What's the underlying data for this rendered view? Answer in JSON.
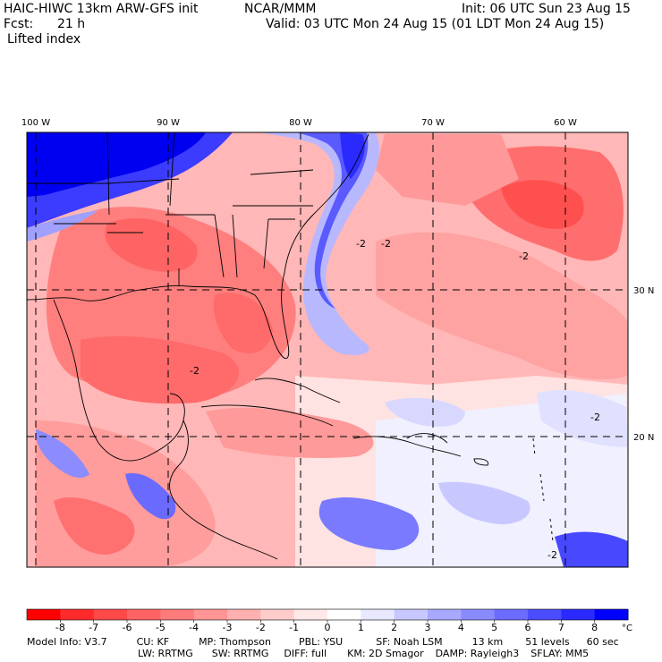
{
  "header": {
    "model_title": "HAIC-HIWC 13km ARW-GFS init",
    "org": "NCAR/MMM",
    "init": "Init: 06 UTC Sun 23 Aug 15",
    "fcst_label": "Fcst:",
    "fcst_value": "21 h",
    "valid": "Valid: 03 UTC Mon 24 Aug 15 (01 LDT Mon 24 Aug 15)",
    "field": "Lifted index"
  },
  "map": {
    "lon_labels": [
      "100 W",
      "90 W",
      "80 W",
      "70 W",
      "60 W"
    ],
    "lat_labels": [
      "30 N",
      "20 N"
    ],
    "contour_labels": [
      "-2",
      "-2",
      "-2",
      "-2",
      "-2",
      "-2"
    ]
  },
  "colorbar": {
    "ticks": [
      "-8",
      "-7",
      "-6",
      "-5",
      "-4",
      "-3",
      "-2",
      "-1",
      "0",
      "1",
      "2",
      "3",
      "4",
      "5",
      "6",
      "7",
      "8"
    ],
    "unit": "°C",
    "colors": [
      "#ff0000",
      "#ff2b2b",
      "#ff4848",
      "#ff6262",
      "#ff7a7a",
      "#ff9595",
      "#ffb0b0",
      "#ffcccc",
      "#ffe8e8",
      "#ffffff",
      "#e8e8ff",
      "#c8c8ff",
      "#a8a8ff",
      "#8a8aff",
      "#6b6bff",
      "#4c4cff",
      "#2a2aff",
      "#0000ff"
    ]
  },
  "footer": {
    "line1": [
      "Model Info: V3.7",
      "CU: KF",
      "MP: Thompson",
      "PBL: YSU",
      "SF: Noah LSM",
      "13 km",
      "51 levels",
      "60 sec"
    ],
    "line2": [
      "LW: RRTMG",
      "SW: RRTMG",
      "DIFF: full",
      "KM: 2D Smagor",
      "DAMP: Rayleigh3",
      "SFLAY: MM5"
    ]
  }
}
